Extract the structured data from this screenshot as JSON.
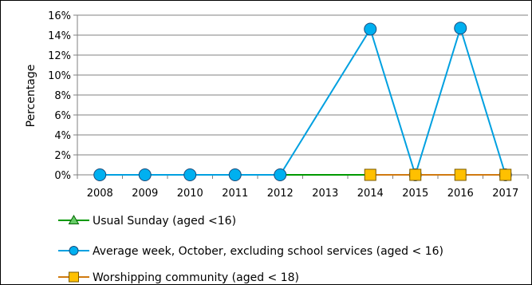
{
  "chart_data": {
    "type": "line",
    "ylabel": "Percentage",
    "xlabel": "",
    "categories": [
      "2008",
      "2009",
      "2010",
      "2011",
      "2012",
      "2013",
      "2014",
      "2015",
      "2016",
      "2017"
    ],
    "y_ticks": [
      "0%",
      "2%",
      "4%",
      "6%",
      "8%",
      "10%",
      "12%",
      "14%",
      "16%"
    ],
    "ylim": [
      0,
      16
    ],
    "grid": "horizontal",
    "legend_position": "bottom",
    "series": [
      {
        "name": "Usual Sunday (aged <16)",
        "color": "#009900",
        "marker": "triangle",
        "marker_fill": "#66cc66",
        "values": [
          0,
          0,
          0,
          0,
          0,
          0,
          0,
          null,
          null,
          null
        ]
      },
      {
        "name": "Average week, October, excluding school services (aged < 16)",
        "color": "#00a0e0",
        "marker": "circle",
        "marker_fill": "#00b0f0",
        "values": [
          0,
          0,
          0,
          0,
          0,
          null,
          14.6,
          0,
          14.7,
          0
        ]
      },
      {
        "name": "Worshipping community (aged < 18)",
        "color": "#d07a10",
        "marker": "square",
        "marker_fill": "#ffc000",
        "values": [
          null,
          null,
          null,
          null,
          null,
          null,
          0,
          0,
          0,
          0
        ]
      }
    ]
  }
}
